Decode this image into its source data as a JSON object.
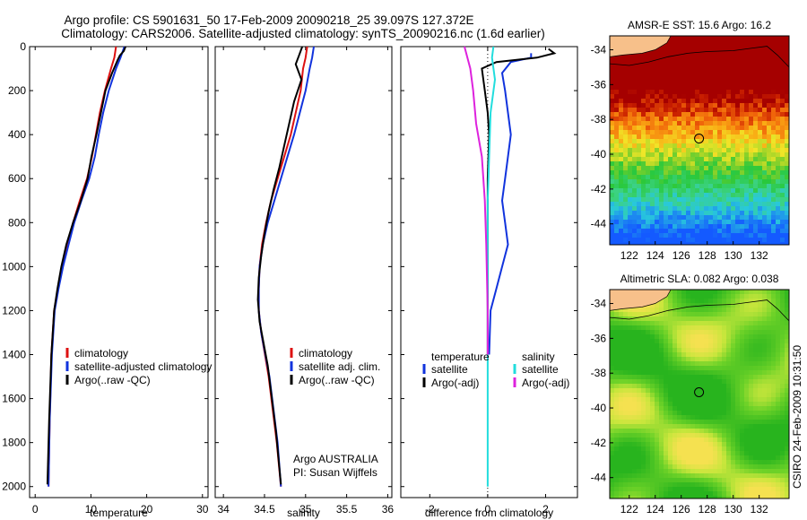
{
  "figure": {
    "title_line1": "Argo profile: CS 5901631_50 17-Feb-2009 20090218_25 39.097S 127.372E",
    "title_line2": "Climatology: CARS2006. Satellite-adjusted climatology: synTS_20090216.nc (1.6d earlier)",
    "side_label": "CSIRO 24-Feb-2009 10:31:50",
    "credit_line1": "Argo AUSTRALIA",
    "credit_line2": "PI: Susan Wijffels"
  },
  "colors": {
    "climatology": "#dd1111",
    "satellite": "#1133dd",
    "argo": "#000000",
    "argo_adj": "#dd22dd",
    "satellite_cyan": "#22dddd",
    "land": "#f7c08a"
  },
  "chart_data": [
    {
      "type": "line",
      "xlabel": "temperature",
      "xlim": [
        -1,
        31
      ],
      "ylim": [
        0,
        2050
      ],
      "xticks": [
        0,
        10,
        20,
        30
      ],
      "yticks": [
        0,
        200,
        400,
        600,
        800,
        1000,
        1200,
        1400,
        1600,
        1800,
        2000
      ],
      "legend": [
        "climatology",
        "satellite-adjusted climatology",
        "Argo(..raw -QC)"
      ],
      "series": [
        {
          "name": "climatology",
          "color": "climatology",
          "x": [
            14.5,
            14.2,
            13.6,
            12.5,
            11.6,
            10.9,
            10.2,
            9.3,
            8.0,
            6.8,
            5.8,
            4.9,
            4.1,
            3.4,
            2.9,
            2.6,
            2.4
          ],
          "y": [
            0,
            50,
            100,
            200,
            300,
            400,
            500,
            600,
            700,
            800,
            900,
            1000,
            1100,
            1200,
            1400,
            1700,
            2000
          ]
        },
        {
          "name": "satellite-adjusted climatology",
          "color": "satellite",
          "x": [
            16.0,
            15.3,
            14.5,
            13.2,
            12.2,
            11.4,
            10.7,
            9.7,
            8.3,
            7.0,
            6.0,
            5.0,
            4.2,
            3.5,
            3.0,
            2.6,
            2.4
          ],
          "y": [
            0,
            50,
            100,
            200,
            300,
            400,
            500,
            600,
            700,
            800,
            900,
            1000,
            1100,
            1200,
            1400,
            1700,
            2000
          ]
        },
        {
          "name": "Argo(..raw -QC)",
          "color": "argo",
          "x": [
            16.2,
            15.9,
            15.2,
            14.8,
            13.8,
            12.6,
            11.8,
            11.0,
            10.1,
            9.4,
            8.2,
            6.8,
            5.6,
            4.7,
            4.0,
            3.4,
            2.9,
            2.5,
            2.3,
            2.2
          ],
          "y": [
            0,
            20,
            40,
            60,
            120,
            200,
            300,
            400,
            500,
            600,
            700,
            800,
            900,
            1000,
            1100,
            1200,
            1400,
            1700,
            1900,
            1990
          ]
        }
      ]
    },
    {
      "type": "line",
      "xlabel": "salinity",
      "xlim": [
        33.9,
        36.05
      ],
      "ylim": [
        0,
        2050
      ],
      "xticks": [
        34,
        34.5,
        35,
        35.5,
        36
      ],
      "yticks": [
        0,
        200,
        400,
        600,
        800,
        1000,
        1200,
        1400,
        1600,
        1800,
        2000
      ],
      "legend": [
        "climatology",
        "satellite adj. clim.",
        "Argo(..raw -QC)"
      ],
      "series": [
        {
          "name": "climatology",
          "color": "climatology",
          "x": [
            35.02,
            35.0,
            34.97,
            34.94,
            34.88,
            34.82,
            34.74,
            34.66,
            34.58,
            34.52,
            34.47,
            34.44,
            34.43,
            34.43,
            34.46,
            34.55,
            34.65,
            34.7
          ],
          "y": [
            0,
            50,
            100,
            200,
            300,
            400,
            500,
            600,
            700,
            800,
            900,
            1000,
            1100,
            1200,
            1300,
            1500,
            1800,
            2000
          ]
        },
        {
          "name": "satellite adj. clim.",
          "color": "satellite",
          "x": [
            35.1,
            35.08,
            35.05,
            35.0,
            34.93,
            34.86,
            34.78,
            34.7,
            34.62,
            34.54,
            34.48,
            34.44,
            34.43,
            34.43,
            34.46,
            34.56,
            34.66,
            34.7
          ],
          "y": [
            0,
            50,
            100,
            200,
            300,
            400,
            500,
            600,
            700,
            800,
            900,
            1000,
            1100,
            1200,
            1300,
            1500,
            1800,
            2000
          ]
        },
        {
          "name": "Argo(..raw -QC)",
          "color": "argo",
          "x": [
            34.96,
            34.92,
            34.88,
            34.95,
            34.86,
            34.8,
            34.74,
            34.68,
            34.61,
            34.55,
            34.5,
            34.46,
            34.43,
            34.42,
            34.44,
            34.54,
            34.64,
            34.7
          ],
          "y": [
            0,
            40,
            80,
            150,
            250,
            350,
            450,
            550,
            650,
            750,
            850,
            950,
            1050,
            1150,
            1250,
            1450,
            1750,
            1990
          ]
        }
      ]
    },
    {
      "type": "line",
      "xlabel": "difference from climatology",
      "xlim": [
        -3,
        3.1
      ],
      "ylim": [
        0,
        2050
      ],
      "xticks": [
        -2,
        0,
        2
      ],
      "yticks": [
        0,
        200,
        400,
        600,
        800,
        1000,
        1200,
        1400,
        1600,
        1800,
        2000
      ],
      "legend_left_title": "temperature",
      "legend_right_title": "salinity",
      "legend": [
        "satellite",
        "Argo(-adj)",
        "satellite",
        "Argo(-adj)"
      ],
      "series": [
        {
          "name": "satellite",
          "group": "temperature",
          "color": "satellite",
          "x": [
            1.5,
            1.5,
            0.8,
            0.5,
            0.6,
            0.7,
            0.8,
            0.7,
            0.6,
            0.5,
            0.6,
            0.7,
            0.5,
            0.3,
            0.1,
            0.05
          ],
          "y": [
            30,
            50,
            70,
            120,
            200,
            300,
            400,
            500,
            600,
            700,
            800,
            900,
            1000,
            1100,
            1200,
            1400
          ]
        },
        {
          "name": "Argo(-adj)",
          "group": "temperature",
          "color": "argo",
          "x": [
            2.1,
            2.3,
            1.7,
            0.3,
            -0.2,
            -0.1,
            0.0,
            0.05,
            0.0,
            0.0,
            0.0,
            0.0,
            0.0
          ],
          "y": [
            10,
            30,
            50,
            70,
            100,
            200,
            300,
            400,
            600,
            800,
            1000,
            1200,
            1400
          ]
        },
        {
          "name": "satellite",
          "group": "salinity",
          "color": "satellite_cyan",
          "x": [
            0.2,
            0.15,
            0.25,
            0.1,
            0.05,
            0.0,
            0.0,
            0.0,
            0.0,
            0.0
          ],
          "y": [
            0,
            50,
            150,
            300,
            500,
            700,
            1000,
            1400,
            1800,
            2000
          ]
        },
        {
          "name": "Argo(-adj)",
          "group": "salinity",
          "color": "argo_adj",
          "x": [
            -0.8,
            -0.6,
            -0.5,
            -0.4,
            -0.2,
            -0.1,
            -0.05,
            0.0,
            0.0
          ],
          "y": [
            0,
            100,
            200,
            350,
            500,
            700,
            900,
            1200,
            1400
          ]
        }
      ]
    },
    {
      "type": "heatmap",
      "title": "AMSR-E SST: 15.6 Argo: 16.2",
      "xlim": [
        120.5,
        134.3
      ],
      "ylim": [
        -45.2,
        -33.2
      ],
      "xticks": [
        122,
        124,
        126,
        128,
        130,
        132
      ],
      "yticks": [
        -34,
        -36,
        -38,
        -40,
        -42,
        -44
      ],
      "marker": [
        127.372,
        -39.097
      ]
    },
    {
      "type": "heatmap",
      "title": "Altimetric SLA: 0.082 Argo: 0.038",
      "xlim": [
        120.5,
        134.3
      ],
      "ylim": [
        -45.2,
        -33.2
      ],
      "xticks": [
        122,
        124,
        126,
        128,
        130,
        132
      ],
      "yticks": [
        -34,
        -36,
        -38,
        -40,
        -42,
        -44
      ],
      "marker": [
        127.372,
        -39.097
      ]
    }
  ]
}
